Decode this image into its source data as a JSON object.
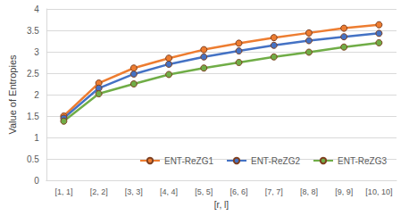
{
  "chart_data": {
    "type": "line",
    "x_label": "[r, l]",
    "y_label": "Value of Entropies",
    "categories": [
      "[1, 1]",
      "[2, 2]",
      "[3, 3]",
      "[4, 4]",
      "[5, 5]",
      "[6, 6]",
      "[7, 7]",
      "[8, 8]",
      "[9, 9]",
      "[10, 10]"
    ],
    "series": [
      {
        "name": "ENT-ReZG1",
        "color": "#ed7d31",
        "marker": "circle",
        "values": [
          1.5,
          2.27,
          2.62,
          2.85,
          3.05,
          3.2,
          3.33,
          3.44,
          3.55,
          3.63
        ]
      },
      {
        "name": "ENT-ReZG2",
        "color": "#4472c4",
        "marker": "circle",
        "values": [
          1.45,
          2.15,
          2.48,
          2.71,
          2.88,
          3.02,
          3.15,
          3.26,
          3.35,
          3.43
        ]
      },
      {
        "name": "ENT-ReZG3",
        "color": "#70ad47",
        "marker": "circle",
        "values": [
          1.38,
          2.02,
          2.25,
          2.47,
          2.62,
          2.75,
          2.88,
          2.99,
          3.11,
          3.21
        ]
      }
    ],
    "ylim": [
      0,
      4
    ],
    "yticks": [
      0,
      0.5,
      1,
      1.5,
      2,
      2.5,
      3,
      3.5,
      4
    ],
    "grid": true,
    "legend": "bottom-right"
  }
}
